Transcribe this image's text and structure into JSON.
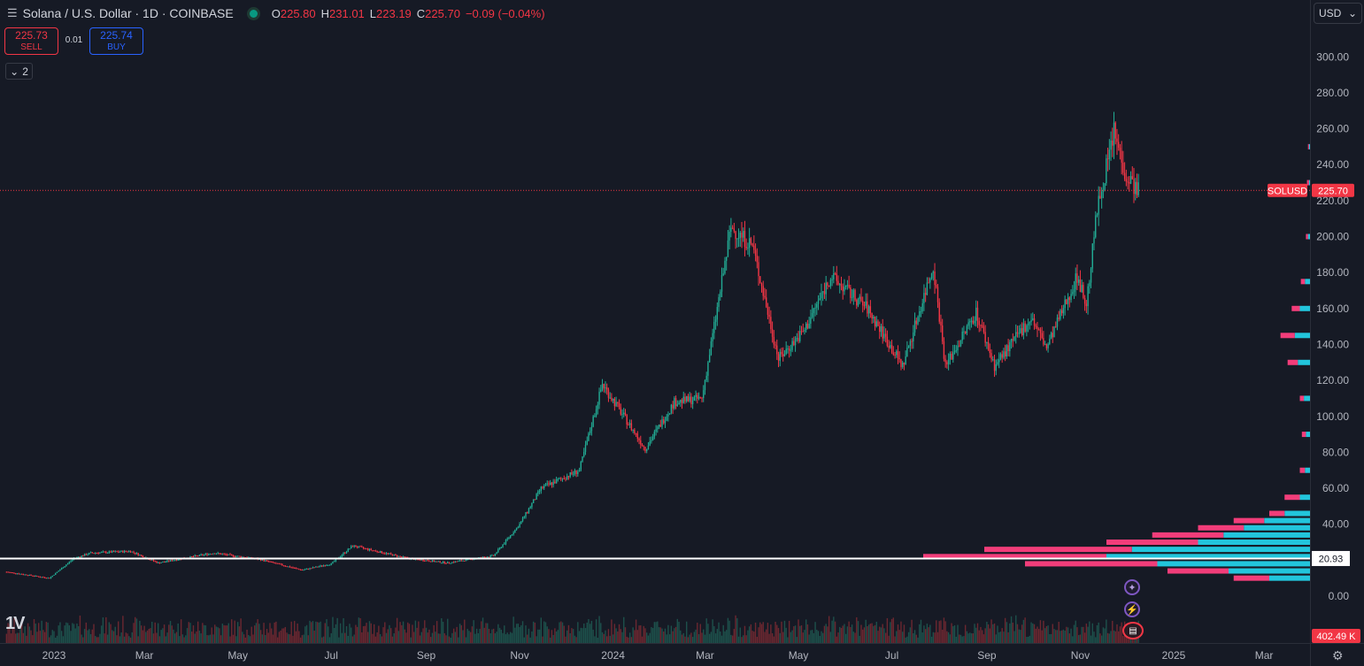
{
  "header": {
    "menu_icon": "hamburger-icon",
    "title": "Solana / U.S. Dollar · 1D · COINBASE",
    "status_color": "#089981",
    "ohlc": [
      {
        "key": "O",
        "value": "225.80"
      },
      {
        "key": "H",
        "value": "231.01"
      },
      {
        "key": "L",
        "value": "223.19"
      },
      {
        "key": "C",
        "value": "225.70"
      }
    ],
    "change": "−0.09 (−0.04%)"
  },
  "trade": {
    "sell_price": "225.73",
    "sell_label": "SELL",
    "spread": "0.01",
    "buy_price": "225.74",
    "buy_label": "BUY"
  },
  "indicators_toggle": {
    "icon": "chevron-down-icon",
    "count": "2"
  },
  "currency": {
    "label": "USD",
    "icon": "chevron-down-icon"
  },
  "badges": {
    "symbol": "SOLUSD",
    "last_price": "225.70",
    "crosshair_price": "20.93",
    "volume": "402.49 K"
  },
  "events": [
    {
      "icon": "sparkle-icon"
    },
    {
      "icon": "lightning-icon"
    },
    {
      "icon": "us-flag-icon"
    }
  ],
  "colors": {
    "up": "#22ab94",
    "down": "#f23645",
    "profile_up": "#22c5dc",
    "profile_down": "#f23d7a",
    "background": "#161a25"
  },
  "chart_data": {
    "type": "candlestick",
    "title": "Solana / U.S. Dollar · 1D · COINBASE",
    "y_ticks": [
      300,
      280,
      260,
      240,
      220,
      200,
      180,
      160,
      140,
      120,
      100,
      80,
      60,
      40,
      20,
      0
    ],
    "y_tick_labels": [
      "300.00",
      "280.00",
      "260.00",
      "240.00",
      "220.00",
      "200.00",
      "180.00",
      "160.00",
      "140.00",
      "120.00",
      "100.00",
      "80.00",
      "60.00",
      "40.00",
      "",
      "0.00"
    ],
    "ylim": [
      0,
      300
    ],
    "x_ticks": [
      "2023",
      "Mar",
      "May",
      "Jul",
      "Sep",
      "Nov",
      "2024",
      "Mar",
      "May",
      "Jul",
      "Sep",
      "Nov",
      "2025",
      "Mar"
    ],
    "x_tick_dates": [
      "2023-01-01",
      "2023-03-01",
      "2023-05-01",
      "2023-07-01",
      "2023-09-01",
      "2023-11-01",
      "2024-01-01",
      "2024-03-01",
      "2024-05-01",
      "2024-07-01",
      "2024-09-01",
      "2024-11-01",
      "2025-01-01",
      "2025-03-01"
    ],
    "last_close": 225.7,
    "crosshair_y": 20.93,
    "price_path": [
      {
        "date": "2022-12-01",
        "close": 13.5
      },
      {
        "date": "2022-12-29",
        "close": 10.0
      },
      {
        "date": "2023-01-14",
        "close": 21.0
      },
      {
        "date": "2023-01-25",
        "close": 24.0
      },
      {
        "date": "2023-02-20",
        "close": 25.0
      },
      {
        "date": "2023-03-10",
        "close": 18.5
      },
      {
        "date": "2023-04-15",
        "close": 24.0
      },
      {
        "date": "2023-05-15",
        "close": 20.5
      },
      {
        "date": "2023-06-12",
        "close": 14.5
      },
      {
        "date": "2023-07-01",
        "close": 18.0
      },
      {
        "date": "2023-07-15",
        "close": 28.0
      },
      {
        "date": "2023-08-20",
        "close": 21.0
      },
      {
        "date": "2023-09-15",
        "close": 18.5
      },
      {
        "date": "2023-10-15",
        "close": 22.5
      },
      {
        "date": "2023-11-01",
        "close": 40.0
      },
      {
        "date": "2023-11-15",
        "close": 60.0
      },
      {
        "date": "2023-12-10",
        "close": 70.0
      },
      {
        "date": "2023-12-25",
        "close": 118.0
      },
      {
        "date": "2024-01-22",
        "close": 82.0
      },
      {
        "date": "2024-02-10",
        "close": 108.0
      },
      {
        "date": "2024-02-28",
        "close": 110.0
      },
      {
        "date": "2024-03-18",
        "close": 205.0
      },
      {
        "date": "2024-04-01",
        "close": 195.0
      },
      {
        "date": "2024-04-18",
        "close": 132.0
      },
      {
        "date": "2024-05-05",
        "close": 148.0
      },
      {
        "date": "2024-05-22",
        "close": 178.0
      },
      {
        "date": "2024-06-15",
        "close": 160.0
      },
      {
        "date": "2024-07-08",
        "close": 128.0
      },
      {
        "date": "2024-07-28",
        "close": 184.0
      },
      {
        "date": "2024-08-05",
        "close": 128.0
      },
      {
        "date": "2024-08-25",
        "close": 158.0
      },
      {
        "date": "2024-09-06",
        "close": 128.0
      },
      {
        "date": "2024-09-30",
        "close": 155.0
      },
      {
        "date": "2024-10-10",
        "close": 138.0
      },
      {
        "date": "2024-10-30",
        "close": 178.0
      },
      {
        "date": "2024-11-05",
        "close": 162.0
      },
      {
        "date": "2024-11-12",
        "close": 215.0
      },
      {
        "date": "2024-11-23",
        "close": 258.0
      },
      {
        "date": "2024-12-01",
        "close": 234.0
      },
      {
        "date": "2024-12-09",
        "close": 225.7
      }
    ],
    "volume_profile": [
      {
        "price": 10,
        "up": 40,
        "down": 35
      },
      {
        "price": 14,
        "up": 80,
        "down": 60
      },
      {
        "price": 18,
        "up": 150,
        "down": 130
      },
      {
        "price": 22,
        "up": 200,
        "down": 180
      },
      {
        "price": 26,
        "up": 175,
        "down": 145
      },
      {
        "price": 30,
        "up": 110,
        "down": 90
      },
      {
        "price": 34,
        "up": 85,
        "down": 70
      },
      {
        "price": 38,
        "up": 65,
        "down": 45
      },
      {
        "price": 42,
        "up": 45,
        "down": 30
      },
      {
        "price": 46,
        "up": 25,
        "down": 15
      },
      {
        "price": 55,
        "up": 10,
        "down": 15
      },
      {
        "price": 70,
        "up": 5,
        "down": 5
      },
      {
        "price": 90,
        "up": 4,
        "down": 4
      },
      {
        "price": 110,
        "up": 6,
        "down": 4
      },
      {
        "price": 130,
        "up": 12,
        "down": 10
      },
      {
        "price": 145,
        "up": 15,
        "down": 14
      },
      {
        "price": 160,
        "up": 10,
        "down": 8
      },
      {
        "price": 175,
        "up": 5,
        "down": 4
      },
      {
        "price": 200,
        "up": 2,
        "down": 2
      },
      {
        "price": 230,
        "up": 1,
        "down": 2
      },
      {
        "price": 250,
        "up": 1,
        "down": 1
      }
    ]
  }
}
